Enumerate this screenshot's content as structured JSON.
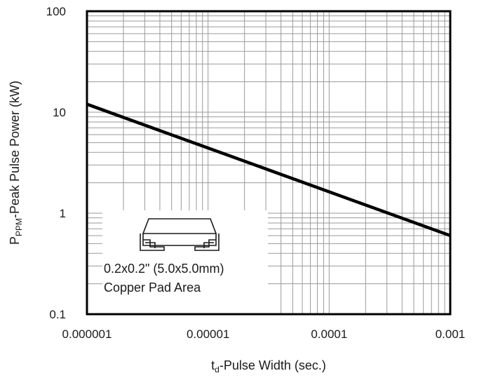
{
  "chart_data": {
    "type": "line",
    "x_scale": "log",
    "y_scale": "log",
    "xlim": [
      1e-06,
      0.001
    ],
    "ylim": [
      0.1,
      100
    ],
    "x_ticks": [
      "0.000001",
      "0.00001",
      "0.0001",
      "0.001"
    ],
    "y_ticks": [
      "0.1",
      "1",
      "10",
      "100"
    ],
    "xlabel": {
      "main": "t",
      "sub": "d",
      "rest": "-Pulse Width (sec.)"
    },
    "ylabel": {
      "main": "P",
      "sub": "PPM",
      "rest": "-Peak Pulse Power (kW)"
    },
    "grid": true,
    "series": [
      {
        "x": [
          1e-06,
          0.001
        ],
        "y": [
          12,
          0.6
        ]
      }
    ],
    "annotation": {
      "line1": "0.2x0.2\" (5.0x5.0mm)",
      "line2": "Copper Pad Area",
      "icon": "smd-package-icon"
    },
    "colors": {
      "line": "#000000",
      "grid": "#9a9a9a",
      "frame": "#000000"
    }
  }
}
